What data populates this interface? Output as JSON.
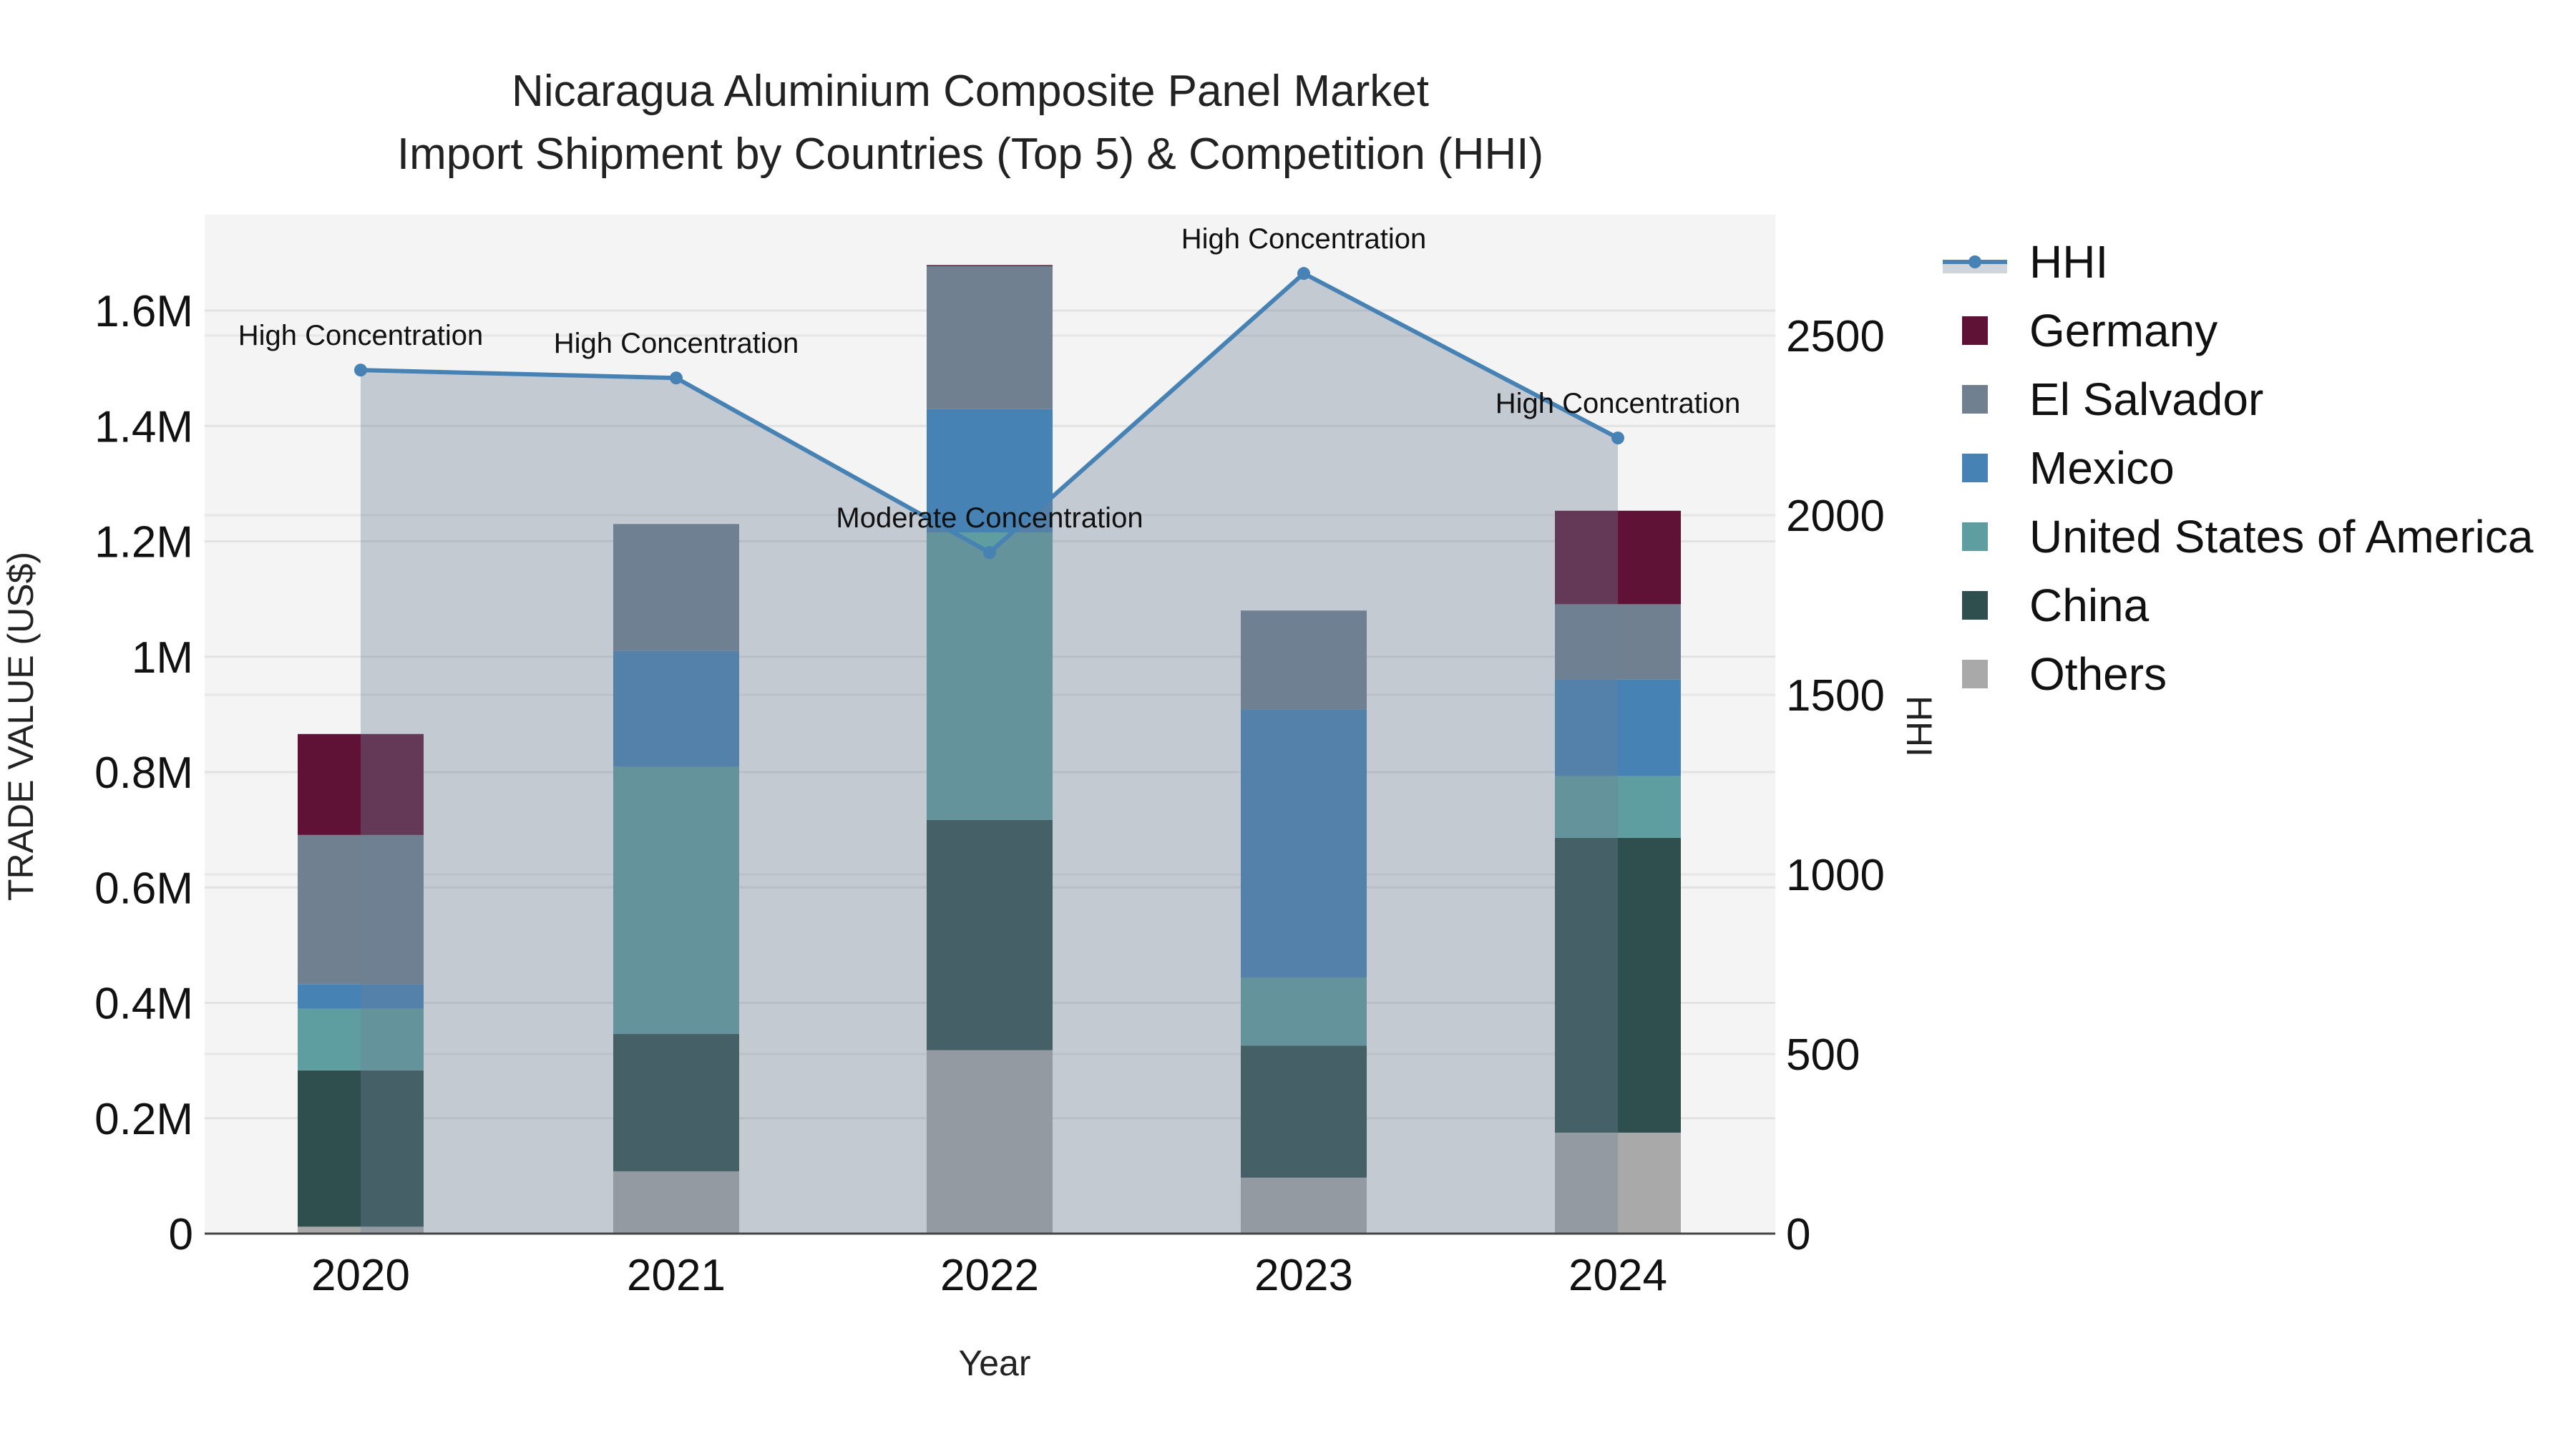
{
  "title": {
    "line1": "Nicaragua Aluminium Composite Panel Market",
    "line2": "Import Shipment by Countries (Top 5) & Competition (HHI)"
  },
  "axes": {
    "x_title": "Year",
    "y_left_title": "TRADE VALUE (US$)",
    "y_right_title": "HHI",
    "y_left_ticks": [
      "0",
      "0.2M",
      "0.4M",
      "0.6M",
      "0.8M",
      "1M",
      "1.2M",
      "1.4M",
      "1.6M"
    ],
    "y_right_ticks": [
      "0",
      "500",
      "1000",
      "1500",
      "2000",
      "2500"
    ],
    "x_ticks": [
      "2020",
      "2021",
      "2022",
      "2023",
      "2024"
    ]
  },
  "legend": {
    "items": [
      {
        "label": "HHI",
        "color": "#4682B4",
        "type": "line"
      },
      {
        "label": "Germany",
        "color": "#5F1235",
        "type": "bar"
      },
      {
        "label": "El Salvador",
        "color": "#708090",
        "type": "bar"
      },
      {
        "label": "Mexico",
        "color": "#4682B4",
        "type": "bar"
      },
      {
        "label": "United States of America",
        "color": "#5F9EA0",
        "type": "bar"
      },
      {
        "label": "China",
        "color": "#2F4F4F",
        "type": "bar"
      },
      {
        "label": "Others",
        "color": "#A9A9A9",
        "type": "bar"
      }
    ]
  },
  "annotations": [
    {
      "year": "2020",
      "text": "High Concentration"
    },
    {
      "year": "2021",
      "text": "High Concentration"
    },
    {
      "year": "2022",
      "text": "Moderate Concentration"
    },
    {
      "year": "2023",
      "text": "High Concentration"
    },
    {
      "year": "2024",
      "text": "High Concentration"
    }
  ],
  "chart_data": {
    "type": "bar",
    "stacked": true,
    "title": "Nicaragua Aluminium Composite Panel Market — Import Shipment by Countries (Top 5) & Competition (HHI)",
    "xlabel": "Year",
    "ylabel": "TRADE VALUE (US$)",
    "y2label": "HHI",
    "categories": [
      "2020",
      "2021",
      "2022",
      "2023",
      "2024"
    ],
    "ylim": [
      0,
      1760000
    ],
    "y2lim": [
      0,
      2800
    ],
    "grid": true,
    "legend_position": "right",
    "series": [
      {
        "name": "Others",
        "color": "#A9A9A9",
        "values": [
          12000,
          108000,
          318000,
          97000,
          175000
        ]
      },
      {
        "name": "China",
        "color": "#2F4F4F",
        "values": [
          271000,
          238000,
          399000,
          229000,
          511000
        ]
      },
      {
        "name": "United States of America",
        "color": "#5F9EA0",
        "values": [
          107000,
          463000,
          498000,
          118000,
          107000
        ]
      },
      {
        "name": "Mexico",
        "color": "#4682B4",
        "values": [
          42000,
          201000,
          214000,
          464000,
          168000
        ]
      },
      {
        "name": "El Salvador",
        "color": "#708090",
        "values": [
          259000,
          220000,
          248000,
          172000,
          130000
        ]
      },
      {
        "name": "Germany",
        "color": "#5F1235",
        "values": [
          175000,
          0,
          1000,
          0,
          162000
        ]
      }
    ],
    "line_series": {
      "name": "HHI",
      "axis": "right",
      "color": "#4682B4",
      "fill": "tozeroy",
      "values": [
        2404,
        2382,
        1896,
        2673,
        2215
      ],
      "labels": [
        "High Concentration",
        "High Concentration",
        "Moderate Concentration",
        "High Concentration",
        "High Concentration"
      ]
    }
  }
}
